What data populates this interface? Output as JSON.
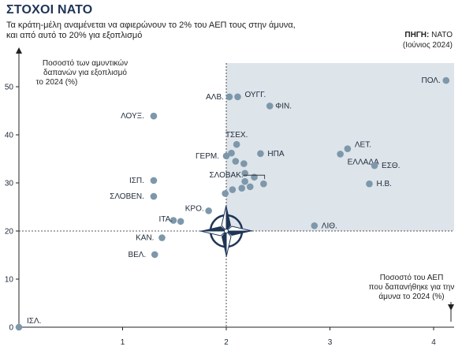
{
  "header": {
    "title": "ΣΤΟΧΟΙ ΝΑΤΟ",
    "subtitle": "Τα κράτη-μέλη αναμένεται να αφιερώνουν το 2% του ΑΕΠ τους στην άμυνα, και από αυτό το 20% για εξοπλισμό",
    "source_label": "ΠΗΓΗ:",
    "source_value": "NATO",
    "source_date": "(Ιούνιος 2024)"
  },
  "colors": {
    "point": "#7d98aa",
    "shade": "#dde4ea",
    "axis": "#222222",
    "compass_dark": "#1f3556"
  },
  "icons": {
    "center": "nato-compass-icon"
  },
  "chart_data": {
    "type": "scatter",
    "title": "ΣΤΟΧΟΙ ΝΑΤΟ",
    "xlabel": "Ποσοστό του ΑΕΠ που δαπανήθηκε για την άμυνα το 2024 (%)",
    "ylabel": "Ποσοστό των αμυντικών δαπανών για εξοπλισμό το 2024 (%)",
    "xlim": [
      0,
      4.2
    ],
    "ylim": [
      0,
      55
    ],
    "xticks": [
      1,
      2,
      3,
      4
    ],
    "yticks": [
      0,
      10,
      20,
      30,
      40,
      50
    ],
    "grid": false,
    "targets": {
      "x": 2,
      "y": 20
    },
    "points": [
      {
        "x": 4.12,
        "y": 51.3,
        "label": "ΠΟΛ."
      },
      {
        "x": 2.03,
        "y": 47.9,
        "label": "ΑΛΒ."
      },
      {
        "x": 2.11,
        "y": 47.9,
        "label": "ΟΥΓΓ."
      },
      {
        "x": 2.42,
        "y": 46.0,
        "label": "ΦΙΝ."
      },
      {
        "x": 1.3,
        "y": 43.9,
        "label": "ΛΟΥΞ."
      },
      {
        "x": 2.1,
        "y": 38.0,
        "label": "ΤΣΕΧ."
      },
      {
        "x": 2.05,
        "y": 36.2,
        "label": ""
      },
      {
        "x": 2.33,
        "y": 36.1,
        "label": "ΗΠΑ"
      },
      {
        "x": 2.0,
        "y": 35.6,
        "label": "ΓΕΡΜ."
      },
      {
        "x": 3.17,
        "y": 37.1,
        "label": "ΛΕΤ."
      },
      {
        "x": 3.1,
        "y": 36.0,
        "label": "ΕΛΛΑΔΑ"
      },
      {
        "x": 3.43,
        "y": 33.6,
        "label": "ΕΣΘ."
      },
      {
        "x": 2.09,
        "y": 34.5,
        "label": ""
      },
      {
        "x": 2.17,
        "y": 34.0,
        "label": ""
      },
      {
        "x": 2.18,
        "y": 32.0,
        "label": ""
      },
      {
        "x": 2.27,
        "y": 31.2,
        "label": ""
      },
      {
        "x": 1.3,
        "y": 30.5,
        "label": "ΙΣΠ."
      },
      {
        "x": 2.18,
        "y": 30.3,
        "label": "ΣΛΟΒΑΚ."
      },
      {
        "x": 2.36,
        "y": 29.8,
        "label": ""
      },
      {
        "x": 3.38,
        "y": 29.8,
        "label": "Η.Β."
      },
      {
        "x": 2.23,
        "y": 29.2,
        "label": ""
      },
      {
        "x": 2.15,
        "y": 28.9,
        "label": ""
      },
      {
        "x": 2.06,
        "y": 28.6,
        "label": ""
      },
      {
        "x": 1.99,
        "y": 27.8,
        "label": ""
      },
      {
        "x": 1.3,
        "y": 27.2,
        "label": "ΣΛΟΒΕΝ."
      },
      {
        "x": 1.83,
        "y": 24.2,
        "label": "ΚΡΟ."
      },
      {
        "x": 1.49,
        "y": 22.2,
        "label": ""
      },
      {
        "x": 1.56,
        "y": 22.0,
        "label": "ΙΤΑ."
      },
      {
        "x": 2.85,
        "y": 21.1,
        "label": "ΛΙΘ."
      },
      {
        "x": 1.38,
        "y": 18.6,
        "label": "ΚΑΝ."
      },
      {
        "x": 1.31,
        "y": 15.1,
        "label": "ΒΕΛ."
      },
      {
        "x": 0.0,
        "y": 0.0,
        "label": "ΙΣΛ."
      }
    ]
  }
}
